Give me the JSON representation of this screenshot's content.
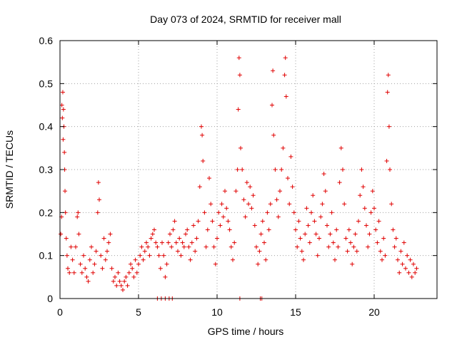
{
  "chart_data": {
    "type": "scatter",
    "title": "Day 073 of 2024, SRMTID for receiver mall",
    "xlabel": "GPS time / hours",
    "ylabel": "SRMTID / TECUs",
    "xlim": [
      0,
      24
    ],
    "ylim": [
      0,
      0.6
    ],
    "xticks": [
      0,
      5,
      10,
      15,
      20
    ],
    "xtick_labels": [
      "0",
      "5",
      "10",
      "15",
      "20"
    ],
    "yticks": [
      0,
      0.1,
      0.2,
      0.3,
      0.4,
      0.5,
      0.6
    ],
    "ytick_labels": [
      "0",
      "0.1",
      "0.2",
      "0.3",
      "0.4",
      "0.5",
      "0.6"
    ],
    "grid": true,
    "marker": "plus",
    "color": "#e00000",
    "series": [
      {
        "name": "SRMTID",
        "points": [
          [
            0.05,
            0.15
          ],
          [
            0.1,
            0.19
          ],
          [
            0.12,
            0.45
          ],
          [
            0.15,
            0.42
          ],
          [
            0.18,
            0.48
          ],
          [
            0.2,
            0.37
          ],
          [
            0.22,
            0.44
          ],
          [
            0.25,
            0.4
          ],
          [
            0.28,
            0.34
          ],
          [
            0.3,
            0.3
          ],
          [
            0.32,
            0.25
          ],
          [
            0.35,
            0.2
          ],
          [
            0.4,
            0.14
          ],
          [
            0.45,
            0.1
          ],
          [
            0.5,
            0.07
          ],
          [
            0.6,
            0.06
          ],
          [
            0.7,
            0.12
          ],
          [
            0.8,
            0.09
          ],
          [
            0.9,
            0.06
          ],
          [
            1.0,
            0.12
          ],
          [
            1.1,
            0.19
          ],
          [
            1.15,
            0.2
          ],
          [
            1.2,
            0.15
          ],
          [
            1.3,
            0.08
          ],
          [
            1.4,
            0.06
          ],
          [
            1.5,
            0.1
          ],
          [
            1.6,
            0.07
          ],
          [
            1.7,
            0.05
          ],
          [
            1.8,
            0.04
          ],
          [
            1.9,
            0.09
          ],
          [
            2.0,
            0.12
          ],
          [
            2.1,
            0.06
          ],
          [
            2.2,
            0.08
          ],
          [
            2.3,
            0.11
          ],
          [
            2.4,
            0.2
          ],
          [
            2.45,
            0.27
          ],
          [
            2.5,
            0.23
          ],
          [
            2.6,
            0.1
          ],
          [
            2.7,
            0.07
          ],
          [
            2.8,
            0.14
          ],
          [
            2.9,
            0.09
          ],
          [
            3.0,
            0.11
          ],
          [
            3.1,
            0.13
          ],
          [
            3.2,
            0.15
          ],
          [
            3.3,
            0.07
          ],
          [
            3.4,
            0.04
          ],
          [
            3.5,
            0.05
          ],
          [
            3.6,
            0.03
          ],
          [
            3.7,
            0.06
          ],
          [
            3.8,
            0.04
          ],
          [
            3.9,
            0.03
          ],
          [
            4.0,
            0.02
          ],
          [
            4.1,
            0.04
          ],
          [
            4.2,
            0.05
          ],
          [
            4.3,
            0.03
          ],
          [
            4.4,
            0.06
          ],
          [
            4.5,
            0.08
          ],
          [
            4.6,
            0.07
          ],
          [
            4.7,
            0.05
          ],
          [
            4.8,
            0.09
          ],
          [
            4.9,
            0.06
          ],
          [
            5.0,
            0.08
          ],
          [
            5.1,
            0.1
          ],
          [
            5.2,
            0.12
          ],
          [
            5.3,
            0.09
          ],
          [
            5.4,
            0.11
          ],
          [
            5.5,
            0.13
          ],
          [
            5.6,
            0.12
          ],
          [
            5.7,
            0.1
          ],
          [
            5.8,
            0.14
          ],
          [
            5.9,
            0.15
          ],
          [
            6.0,
            0.16
          ],
          [
            6.1,
            0.13
          ],
          [
            6.2,
            0.12
          ],
          [
            6.3,
            0.1
          ],
          [
            6.4,
            0.07
          ],
          [
            6.5,
            0.13
          ],
          [
            6.6,
            0.1
          ],
          [
            6.7,
            0.05
          ],
          [
            6.8,
            0.08
          ],
          [
            6.9,
            0.13
          ],
          [
            7.0,
            0.15
          ],
          [
            7.1,
            0.12
          ],
          [
            7.2,
            0.16
          ],
          [
            7.3,
            0.18
          ],
          [
            7.4,
            0.13
          ],
          [
            7.5,
            0.11
          ],
          [
            7.6,
            0.14
          ],
          [
            7.7,
            0.1
          ],
          [
            7.8,
            0.13
          ],
          [
            7.9,
            0.12
          ],
          [
            8.0,
            0.15
          ],
          [
            8.1,
            0.16
          ],
          [
            8.2,
            0.12
          ],
          [
            8.3,
            0.09
          ],
          [
            8.4,
            0.13
          ],
          [
            8.5,
            0.17
          ],
          [
            8.6,
            0.11
          ],
          [
            8.7,
            0.14
          ],
          [
            8.8,
            0.18
          ],
          [
            8.9,
            0.26
          ],
          [
            9.0,
            0.4
          ],
          [
            9.05,
            0.38
          ],
          [
            9.1,
            0.32
          ],
          [
            9.2,
            0.2
          ],
          [
            9.3,
            0.12
          ],
          [
            9.4,
            0.16
          ],
          [
            9.5,
            0.28
          ],
          [
            9.6,
            0.22
          ],
          [
            9.7,
            0.18
          ],
          [
            9.8,
            0.12
          ],
          [
            9.9,
            0.08
          ],
          [
            10.0,
            0.14
          ],
          [
            10.1,
            0.2
          ],
          [
            10.2,
            0.17
          ],
          [
            10.3,
            0.22
          ],
          [
            10.4,
            0.19
          ],
          [
            10.5,
            0.25
          ],
          [
            10.6,
            0.21
          ],
          [
            10.7,
            0.18
          ],
          [
            10.8,
            0.16
          ],
          [
            10.9,
            0.12
          ],
          [
            11.0,
            0.09
          ],
          [
            11.1,
            0.13
          ],
          [
            11.2,
            0.25
          ],
          [
            11.3,
            0.3
          ],
          [
            11.35,
            0.44
          ],
          [
            11.4,
            0.56
          ],
          [
            11.45,
            0.52
          ],
          [
            11.5,
            0.35
          ],
          [
            11.6,
            0.3
          ],
          [
            11.7,
            0.23
          ],
          [
            11.8,
            0.19
          ],
          [
            11.9,
            0.27
          ],
          [
            12.0,
            0.22
          ],
          [
            12.1,
            0.26
          ],
          [
            12.2,
            0.21
          ],
          [
            12.3,
            0.24
          ],
          [
            12.4,
            0.17
          ],
          [
            12.5,
            0.12
          ],
          [
            12.6,
            0.08
          ],
          [
            12.7,
            0.11
          ],
          [
            12.8,
            0.15
          ],
          [
            12.9,
            0.18
          ],
          [
            13.0,
            0.13
          ],
          [
            13.1,
            0.09
          ],
          [
            13.2,
            0.2
          ],
          [
            13.3,
            0.16
          ],
          [
            13.4,
            0.22
          ],
          [
            13.5,
            0.45
          ],
          [
            13.55,
            0.53
          ],
          [
            13.6,
            0.38
          ],
          [
            13.7,
            0.3
          ],
          [
            13.8,
            0.23
          ],
          [
            13.9,
            0.19
          ],
          [
            14.0,
            0.25
          ],
          [
            14.1,
            0.3
          ],
          [
            14.2,
            0.35
          ],
          [
            14.3,
            0.52
          ],
          [
            14.35,
            0.56
          ],
          [
            14.4,
            0.47
          ],
          [
            14.5,
            0.28
          ],
          [
            14.6,
            0.22
          ],
          [
            14.7,
            0.33
          ],
          [
            14.8,
            0.26
          ],
          [
            14.9,
            0.2
          ],
          [
            15.0,
            0.16
          ],
          [
            15.1,
            0.12
          ],
          [
            15.2,
            0.18
          ],
          [
            15.3,
            0.14
          ],
          [
            15.4,
            0.11
          ],
          [
            15.5,
            0.09
          ],
          [
            15.6,
            0.15
          ],
          [
            15.7,
            0.21
          ],
          [
            15.8,
            0.17
          ],
          [
            15.9,
            0.13
          ],
          [
            16.0,
            0.2
          ],
          [
            16.1,
            0.24
          ],
          [
            16.2,
            0.18
          ],
          [
            16.3,
            0.15
          ],
          [
            16.4,
            0.1
          ],
          [
            16.5,
            0.14
          ],
          [
            16.6,
            0.19
          ],
          [
            16.7,
            0.22
          ],
          [
            16.8,
            0.29
          ],
          [
            16.9,
            0.25
          ],
          [
            17.0,
            0.17
          ],
          [
            17.1,
            0.12
          ],
          [
            17.2,
            0.15
          ],
          [
            17.3,
            0.2
          ],
          [
            17.4,
            0.13
          ],
          [
            17.5,
            0.09
          ],
          [
            17.6,
            0.16
          ],
          [
            17.7,
            0.12
          ],
          [
            17.8,
            0.27
          ],
          [
            17.9,
            0.35
          ],
          [
            18.0,
            0.3
          ],
          [
            18.1,
            0.22
          ],
          [
            18.2,
            0.14
          ],
          [
            18.3,
            0.11
          ],
          [
            18.4,
            0.16
          ],
          [
            18.5,
            0.13
          ],
          [
            18.6,
            0.08
          ],
          [
            18.7,
            0.12
          ],
          [
            18.8,
            0.15
          ],
          [
            18.9,
            0.11
          ],
          [
            19.0,
            0.18
          ],
          [
            19.1,
            0.24
          ],
          [
            19.2,
            0.3
          ],
          [
            19.3,
            0.26
          ],
          [
            19.4,
            0.21
          ],
          [
            19.5,
            0.17
          ],
          [
            19.6,
            0.12
          ],
          [
            19.7,
            0.15
          ],
          [
            19.8,
            0.2
          ],
          [
            19.9,
            0.25
          ],
          [
            20.0,
            0.21
          ],
          [
            20.1,
            0.16
          ],
          [
            20.2,
            0.13
          ],
          [
            20.3,
            0.18
          ],
          [
            20.4,
            0.11
          ],
          [
            20.5,
            0.09
          ],
          [
            20.6,
            0.14
          ],
          [
            20.7,
            0.1
          ],
          [
            20.8,
            0.32
          ],
          [
            20.85,
            0.48
          ],
          [
            20.9,
            0.52
          ],
          [
            20.95,
            0.4
          ],
          [
            21.0,
            0.3
          ],
          [
            21.1,
            0.22
          ],
          [
            21.2,
            0.16
          ],
          [
            21.3,
            0.12
          ],
          [
            21.4,
            0.14
          ],
          [
            21.5,
            0.09
          ],
          [
            21.6,
            0.06
          ],
          [
            21.7,
            0.11
          ],
          [
            21.8,
            0.08
          ],
          [
            21.9,
            0.13
          ],
          [
            22.0,
            0.07
          ],
          [
            22.1,
            0.1
          ],
          [
            22.2,
            0.06
          ],
          [
            22.3,
            0.09
          ],
          [
            22.4,
            0.05
          ],
          [
            22.5,
            0.08
          ],
          [
            22.6,
            0.06
          ],
          [
            22.7,
            0.07
          ],
          [
            6.2,
            0.0
          ],
          [
            6.45,
            0.0
          ],
          [
            6.7,
            0.0
          ],
          [
            6.95,
            0.0
          ],
          [
            7.15,
            0.0
          ],
          [
            11.45,
            0.0
          ],
          [
            12.75,
            0.0
          ],
          [
            12.85,
            0.0
          ]
        ]
      }
    ]
  }
}
